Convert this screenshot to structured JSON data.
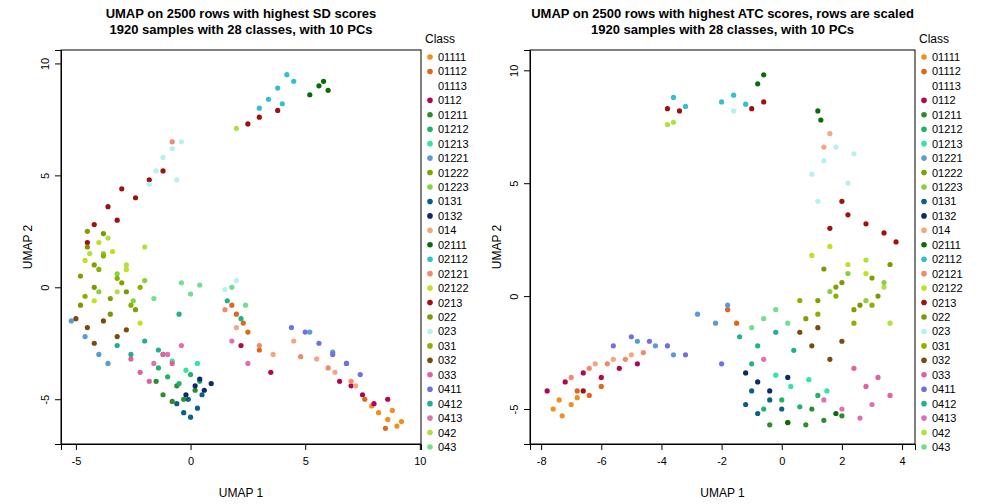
{
  "chart_data": [
    {
      "type": "scatter",
      "title": "UMAP on 2500 rows with highest SD scores",
      "subtitle": "1920 samples with 28 classes, with 10 PCs",
      "x_label": "UMAP 1",
      "y_label": "UMAP 2",
      "legend_title": "Class",
      "legend": "right",
      "marker": "circle",
      "xlim": [
        -5.65,
        10.05
      ],
      "ylim": [
        -7.0,
        10.6
      ],
      "xticks": [
        -5,
        0,
        5,
        10
      ],
      "yticks": [
        -5,
        0,
        5,
        10
      ],
      "series": [
        {
          "name": "01111",
          "color": "#f28e1c",
          "x": [
            8.2,
            8.6,
            9.0,
            8.8,
            7.9,
            9.2
          ],
          "y": [
            -5.6,
            -5.9,
            -6.2,
            -5.5,
            -5.3,
            -6.0
          ]
        },
        {
          "name": "01112",
          "color": "#e0661a",
          "x": [
            2.0,
            2.5,
            3.0,
            1.8,
            8.5,
            7.6,
            2.3
          ],
          "y": [
            -1.2,
            -2.0,
            -2.8,
            -0.8,
            -6.3,
            -5.0,
            -1.6
          ]
        },
        {
          "name": "01113",
          "color": "#ffffff",
          "x": [],
          "y": []
        },
        {
          "name": "0112",
          "color": "#b0084f",
          "x": [
            7.0,
            7.5,
            8.0,
            8.6,
            6.5,
            3.5,
            2.2
          ],
          "y": [
            -4.4,
            -4.8,
            -5.2,
            -5.0,
            -4.2,
            -3.8,
            -2.6
          ]
        },
        {
          "name": "01211",
          "color": "#2e8b2e",
          "x": [
            -1.2,
            -0.8,
            -0.3,
            0.2,
            -1.5,
            -0.6
          ],
          "y": [
            -4.8,
            -5.1,
            -5.0,
            -4.6,
            -4.2,
            -4.4
          ]
        },
        {
          "name": "01212",
          "color": "#1fb36b",
          "x": [
            -1.0,
            -0.5,
            0.0,
            -1.4,
            0.4
          ],
          "y": [
            -4.0,
            -4.3,
            -3.9,
            -3.6,
            -4.2
          ]
        },
        {
          "name": "01213",
          "color": "#2ee8a0",
          "x": [
            -0.8,
            -0.2,
            0.3,
            -1.2
          ],
          "y": [
            -3.3,
            -3.7,
            -3.4,
            -3.0
          ]
        },
        {
          "name": "01221",
          "color": "#5b9bd5",
          "x": [
            -5.2,
            -4.6,
            -4.0,
            -3.6,
            5.2,
            6.2,
            6.8
          ],
          "y": [
            -1.5,
            -2.2,
            -3.0,
            -3.4,
            -2.0,
            -2.9,
            -3.4
          ]
        },
        {
          "name": "01222",
          "color": "#7fa000",
          "x": [
            -4.8,
            -4.2,
            -3.5,
            -3.0,
            -2.4,
            -4.5
          ],
          "y": [
            0.5,
            1.0,
            -0.5,
            0.2,
            -1.0,
            2.5
          ]
        },
        {
          "name": "01223",
          "color": "#88d040",
          "x": [
            -4.0,
            -3.2,
            -2.5,
            -2.0,
            -3.8
          ],
          "y": [
            -0.2,
            0.6,
            -0.6,
            0.3,
            1.5
          ]
        },
        {
          "name": "0131",
          "color": "#0b5f8a",
          "x": [
            -0.6,
            -0.3,
            0.0,
            0.3,
            -0.1,
            0.5
          ],
          "y": [
            -5.2,
            -5.6,
            -5.8,
            -5.4,
            -5.0,
            -4.8
          ]
        },
        {
          "name": "0132",
          "color": "#0a2a6b",
          "x": [
            0.2,
            0.6,
            0.9,
            -0.2,
            0.4
          ],
          "y": [
            -4.4,
            -4.6,
            -4.3,
            -4.8,
            -4.1
          ]
        },
        {
          "name": "014",
          "color": "#f4a582",
          "x": [
            4.5,
            5.5,
            6.3,
            7.2,
            2.0,
            3.6
          ],
          "y": [
            -2.4,
            -3.2,
            -3.8,
            -4.4,
            -1.8,
            -3.0
          ]
        },
        {
          "name": "02111",
          "color": "#0a6b0a",
          "x": [
            5.2,
            5.6,
            6.0,
            5.8
          ],
          "y": [
            8.6,
            9.0,
            8.8,
            9.2
          ]
        },
        {
          "name": "02112",
          "color": "#30c0d0",
          "x": [
            3.4,
            3.8,
            4.2,
            4.5,
            4.0,
            3.0
          ],
          "y": [
            8.4,
            8.9,
            9.5,
            9.2,
            8.2,
            8.0
          ]
        },
        {
          "name": "02121",
          "color": "#f08a6a",
          "x": [
            3.0,
            4.8,
            6.0,
            7.0,
            1.5,
            -0.8
          ],
          "y": [
            -2.6,
            -3.1,
            -3.6,
            -4.2,
            -1.0,
            6.5
          ]
        },
        {
          "name": "02122",
          "color": "#c0e020",
          "x": [
            -4.6,
            -4.0,
            -3.4,
            -2.8,
            -4.2,
            -2.2
          ],
          "y": [
            1.2,
            2.0,
            1.6,
            0.8,
            -0.6,
            -1.6
          ]
        },
        {
          "name": "0213",
          "color": "#a01010",
          "x": [
            -4.2,
            -3.6,
            -3.0,
            -2.4,
            -1.8,
            -1.2,
            -3.2,
            -4.5,
            3.0,
            2.5,
            3.8
          ],
          "y": [
            2.8,
            3.6,
            4.4,
            4.0,
            4.8,
            5.2,
            3.0,
            2.0,
            7.6,
            7.3,
            7.9
          ]
        },
        {
          "name": "022",
          "color": "#7a9a00",
          "x": [
            -4.8,
            -4.2,
            -3.5,
            -2.8,
            -4.5,
            -3.8
          ],
          "y": [
            -0.8,
            0.0,
            -1.2,
            -0.2,
            1.8,
            2.4
          ]
        },
        {
          "name": "023",
          "color": "#b8f0f0",
          "x": [
            -1.2,
            -0.8,
            -0.4,
            -1.8,
            -1.5,
            -0.6,
            2.0,
            1.5
          ],
          "y": [
            5.8,
            6.2,
            6.5,
            4.6,
            5.2,
            4.8,
            0.3,
            -0.1
          ]
        },
        {
          "name": "031",
          "color": "#8ab000",
          "x": [
            -4.6,
            -4.0,
            -3.2,
            -2.6,
            -3.8,
            -2.2
          ],
          "y": [
            -0.4,
            0.8,
            0.4,
            -0.8,
            1.4,
            0.0
          ]
        },
        {
          "name": "032",
          "color": "#7a4a10",
          "x": [
            -5.0,
            -4.5,
            -3.8,
            -3.2,
            -4.2,
            -2.8
          ],
          "y": [
            -1.4,
            -1.8,
            -1.5,
            -2.2,
            -2.5,
            -1.9
          ]
        },
        {
          "name": "033",
          "color": "#e060a0",
          "x": [
            -2.2,
            -1.8,
            -1.2,
            -0.8,
            -2.6
          ],
          "y": [
            -3.8,
            -4.2,
            -3.0,
            -3.4,
            -3.2
          ]
        },
        {
          "name": "0411",
          "color": "#7070e0",
          "x": [
            5.0,
            5.6,
            6.2,
            6.8,
            7.4,
            4.4
          ],
          "y": [
            -2.0,
            -2.5,
            -3.0,
            -3.4,
            -3.9,
            -1.8
          ]
        },
        {
          "name": "0412",
          "color": "#20b090",
          "x": [
            -3.2,
            -2.6,
            -2.0,
            -1.4,
            1.6,
            2.2,
            -0.5
          ],
          "y": [
            -2.6,
            -3.0,
            -2.4,
            -2.8,
            -0.6,
            -1.4,
            -1.2
          ]
        },
        {
          "name": "0413",
          "color": "#e070b0",
          "x": [
            -1.6,
            -1.0,
            -0.4,
            1.8,
            2.5
          ],
          "y": [
            -3.4,
            -3.0,
            -2.6,
            -2.4,
            -3.4
          ]
        },
        {
          "name": "042",
          "color": "#b0e040",
          "x": [
            -4.4,
            -3.6,
            -2.8,
            -2.0,
            2.0,
            -3.2
          ],
          "y": [
            1.5,
            2.2,
            1.0,
            1.8,
            7.1,
            -0.2
          ]
        },
        {
          "name": "043",
          "color": "#70e090",
          "x": [
            -0.4,
            0.0,
            0.4,
            1.8,
            2.4,
            -1.6
          ],
          "y": [
            0.2,
            -0.3,
            0.1,
            0.0,
            -0.8,
            -0.5
          ]
        }
      ]
    },
    {
      "type": "scatter",
      "title": "UMAP on 2500 rows with highest ATC scores, rows are scaled",
      "subtitle": "1920 samples with 28 classes, with 10 PCs",
      "x_label": "UMAP 1",
      "y_label": "UMAP 2",
      "legend_title": "Class",
      "legend": "right",
      "marker": "circle",
      "xlim": [
        -8.37,
        4.43
      ],
      "ylim": [
        -6.55,
        10.9
      ],
      "xticks": [
        -8,
        -6,
        -4,
        -2,
        0,
        2,
        4
      ],
      "yticks": [
        -5,
        0,
        5,
        10
      ],
      "series": [
        {
          "name": "01111",
          "color": "#f28e1c",
          "x": [
            -7.6,
            -7.3,
            -7.0,
            -6.8,
            -7.4
          ],
          "y": [
            -5.0,
            -5.3,
            -4.8,
            -4.5,
            -4.6
          ]
        },
        {
          "name": "01112",
          "color": "#e0661a",
          "x": [
            -6.8,
            -6.4,
            -6.0,
            -1.8,
            -1.5
          ],
          "y": [
            -4.2,
            -4.4,
            -4.0,
            -0.6,
            -1.2
          ]
        },
        {
          "name": "01113",
          "color": "#ffffff",
          "x": [],
          "y": []
        },
        {
          "name": "0112",
          "color": "#b0084f",
          "x": [
            -7.2,
            -6.6,
            -6.0,
            -5.4,
            -7.8,
            -4.8
          ],
          "y": [
            -3.8,
            -3.4,
            -3.6,
            -3.2,
            -4.2,
            -3.0
          ]
        },
        {
          "name": "01211",
          "color": "#2e8b2e",
          "x": [
            0.2,
            0.8,
            1.4,
            2.0,
            -0.4,
            1.0
          ],
          "y": [
            -5.6,
            -5.7,
            -5.5,
            -5.3,
            -5.7,
            -5.0
          ]
        },
        {
          "name": "01212",
          "color": "#1fb36b",
          "x": [
            0.0,
            0.6,
            1.2,
            -0.6
          ],
          "y": [
            -4.6,
            -4.9,
            -4.4,
            -5.0
          ]
        },
        {
          "name": "01213",
          "color": "#2ee8a0",
          "x": [
            0.3,
            0.9,
            1.5,
            -0.2
          ],
          "y": [
            -4.0,
            -3.7,
            -4.2,
            -3.5
          ]
        },
        {
          "name": "01221",
          "color": "#5b9bd5",
          "x": [
            -4.8,
            -4.2,
            -3.6,
            -2.2,
            -1.8,
            -2.8
          ],
          "y": [
            -2.0,
            -2.2,
            -2.6,
            -1.2,
            -0.4,
            -0.8
          ]
        },
        {
          "name": "01222",
          "color": "#7fa000",
          "x": [
            1.2,
            1.8,
            2.4,
            3.0,
            0.8
          ],
          "y": [
            -0.2,
            0.4,
            -0.6,
            0.8,
            -1.0
          ]
        },
        {
          "name": "01223",
          "color": "#88d040",
          "x": [
            1.6,
            2.2,
            2.8,
            3.4
          ],
          "y": [
            0.2,
            1.0,
            -0.2,
            0.6
          ]
        },
        {
          "name": "0131",
          "color": "#0b5f8a",
          "x": [
            -1.2,
            -0.8,
            -0.4,
            0.0,
            -1.0
          ],
          "y": [
            -4.8,
            -5.2,
            -4.6,
            -5.0,
            -4.2
          ]
        },
        {
          "name": "0132",
          "color": "#0a2a6b",
          "x": [
            -0.8,
            -0.4,
            0.2,
            -1.2
          ],
          "y": [
            -3.8,
            -4.2,
            -3.6,
            -3.4
          ]
        },
        {
          "name": "014",
          "color": "#f4a582",
          "x": [
            -6.2,
            -5.6,
            -5.0,
            1.6,
            1.4,
            -3.8
          ],
          "y": [
            -3.0,
            -2.8,
            -2.6,
            7.2,
            6.6,
            -2.2
          ]
        },
        {
          "name": "02111",
          "color": "#0a6b0a",
          "x": [
            -0.8,
            -0.6,
            1.2,
            1.3,
            0.2,
            1.8
          ],
          "y": [
            9.4,
            9.8,
            8.2,
            7.8,
            -5.6,
            -5.2
          ]
        },
        {
          "name": "02112",
          "color": "#30c0d0",
          "x": [
            -2.0,
            -1.6,
            -1.2,
            -3.6,
            -3.2
          ],
          "y": [
            8.6,
            8.9,
            8.5,
            8.8,
            8.4
          ]
        },
        {
          "name": "02121",
          "color": "#f08a6a",
          "x": [
            -7.0,
            -6.4,
            -5.8,
            -5.2,
            -4.6
          ],
          "y": [
            -3.6,
            -3.2,
            -3.0,
            -2.8,
            -2.5
          ]
        },
        {
          "name": "02122",
          "color": "#c0e020",
          "x": [
            1.0,
            1.6,
            2.2,
            2.8
          ],
          "y": [
            1.8,
            2.2,
            1.4,
            1.0
          ]
        },
        {
          "name": "0213",
          "color": "#a01010",
          "x": [
            1.6,
            2.2,
            2.8,
            3.4,
            3.8,
            2.0,
            -3.8,
            -3.4,
            -1.0,
            -0.6,
            -6.6
          ],
          "y": [
            3.0,
            3.6,
            3.2,
            2.8,
            2.4,
            4.2,
            8.3,
            8.2,
            8.3,
            8.6,
            -4.2
          ]
        },
        {
          "name": "022",
          "color": "#7a9a00",
          "x": [
            1.4,
            2.0,
            2.6,
            3.2,
            3.6
          ],
          "y": [
            1.2,
            0.6,
            -0.4,
            0.0,
            1.4
          ]
        },
        {
          "name": "023",
          "color": "#b8f0f0",
          "x": [
            1.0,
            1.4,
            1.8,
            2.2,
            1.2,
            2.4,
            -1.6
          ],
          "y": [
            5.4,
            6.0,
            6.6,
            5.0,
            4.2,
            6.3,
            8.2
          ]
        },
        {
          "name": "031",
          "color": "#8ab000",
          "x": [
            1.2,
            1.8,
            2.4,
            3.0,
            0.6
          ],
          "y": [
            -0.8,
            0.0,
            -1.2,
            -0.4,
            -0.2
          ]
        },
        {
          "name": "032",
          "color": "#7a4a10",
          "x": [
            0.6,
            1.0,
            1.6,
            2.0,
            1.2
          ],
          "y": [
            -1.6,
            -2.2,
            -2.8,
            -2.0,
            -1.4
          ]
        },
        {
          "name": "033",
          "color": "#e060a0",
          "x": [
            2.8,
            3.2,
            3.6,
            2.4
          ],
          "y": [
            -4.0,
            -3.6,
            -4.4,
            -3.2
          ]
        },
        {
          "name": "0411",
          "color": "#7070e0",
          "x": [
            -5.0,
            -4.4,
            -3.8,
            -3.2,
            -2.0,
            -5.6
          ],
          "y": [
            -1.8,
            -2.0,
            -2.2,
            -2.6,
            -3.0,
            -2.2
          ]
        },
        {
          "name": "0412",
          "color": "#20b090",
          "x": [
            -1.4,
            -0.8,
            -0.2,
            0.4,
            -1.0
          ],
          "y": [
            -1.8,
            -2.2,
            -1.6,
            -2.4,
            -3.0
          ]
        },
        {
          "name": "0413",
          "color": "#e070b0",
          "x": [
            2.0,
            2.6,
            3.0,
            1.4,
            -0.6
          ],
          "y": [
            -5.0,
            -5.4,
            -4.8,
            -4.6,
            -2.8
          ]
        },
        {
          "name": "042",
          "color": "#b0e040",
          "x": [
            -3.8,
            -3.6,
            2.8,
            3.4,
            3.6
          ],
          "y": [
            7.6,
            7.7,
            1.6,
            0.4,
            -1.2
          ]
        },
        {
          "name": "043",
          "color": "#70e090",
          "x": [
            -0.6,
            -0.2,
            0.2,
            -1.0
          ],
          "y": [
            -1.0,
            -0.6,
            -1.2,
            -1.4
          ]
        }
      ]
    }
  ]
}
